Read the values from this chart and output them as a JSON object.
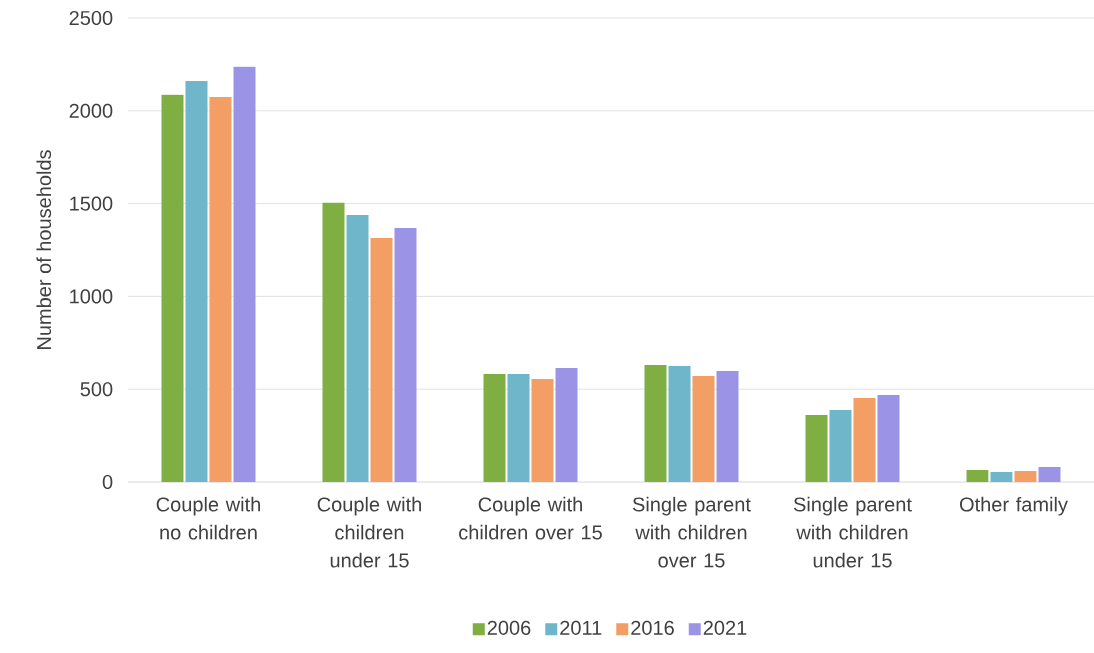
{
  "chart_data": {
    "type": "bar",
    "ylabel": "Number of households",
    "categories": [
      "Couple with no children",
      "Couple with children under 15",
      "Couple with children over 15",
      "Single parent with children over 15",
      "Single parent with children under 15",
      "Other family"
    ],
    "series": [
      {
        "name": "2006",
        "color": "#7fae42",
        "values": [
          2086,
          1504,
          582,
          631,
          361,
          65
        ]
      },
      {
        "name": "2011",
        "color": "#6fb6cb",
        "values": [
          2161,
          1439,
          582,
          625,
          388,
          54
        ]
      },
      {
        "name": "2016",
        "color": "#f29e65",
        "values": [
          2075,
          1315,
          555,
          571,
          453,
          59
        ]
      },
      {
        "name": "2021",
        "color": "#9b93e6",
        "values": [
          2237,
          1369,
          614,
          598,
          469,
          81
        ]
      }
    ],
    "ylim": [
      0,
      2500
    ],
    "yticks": [
      0,
      500,
      1000,
      1500,
      2000,
      2500
    ],
    "grid": "y",
    "legend": "bottom"
  }
}
